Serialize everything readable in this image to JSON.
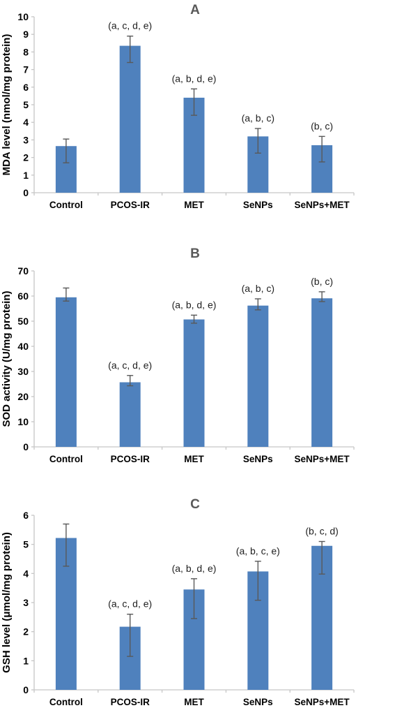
{
  "figure": {
    "background": "#FFFFFF",
    "panel_labels": [
      "A",
      "B",
      "C"
    ]
  },
  "style": {
    "bar_color": "#4F81BD",
    "error_bar_color": "#595959",
    "axis_line_color": "#C6C6C6",
    "panel_title_color": "#595959",
    "tick_label_color": "#000000",
    "annotation_color": "#1F1F1F"
  },
  "chart_data": [
    {
      "panel": "A",
      "type": "bar",
      "title": "A",
      "ylabel": "MDA level (nmol/mg protein)",
      "xlabel": "",
      "ylim": [
        0,
        10
      ],
      "ystep": 1,
      "grid": false,
      "categories": [
        "Control",
        "PCOS-IR",
        "MET",
        "SeNPs",
        "SeNPs+MET"
      ],
      "values": [
        2.65,
        8.35,
        5.4,
        3.2,
        2.7
      ],
      "error_upper": [
        3.05,
        8.9,
        5.9,
        3.65,
        3.2
      ],
      "error_lower": [
        1.7,
        7.4,
        4.4,
        2.25,
        1.75
      ],
      "annotations": [
        "",
        "(a, c, d, e)",
        "(a, b, d, e)",
        "(a, b, c)",
        "(b, c)"
      ]
    },
    {
      "panel": "B",
      "type": "bar",
      "title": "B",
      "ylabel": "SOD activity (U/mg protein)",
      "xlabel": "",
      "ylim": [
        0,
        70
      ],
      "ystep": 10,
      "grid": false,
      "categories": [
        "Control",
        "PCOS-IR",
        "MET",
        "SeNPs",
        "SeNPs+MET"
      ],
      "values": [
        59.5,
        25.7,
        50.7,
        56.2,
        59.1
      ],
      "error_upper": [
        63.2,
        28.4,
        52.4,
        58.9,
        61.7
      ],
      "error_lower": [
        58.0,
        24.3,
        49.2,
        54.5,
        57.8
      ],
      "annotations": [
        "",
        "(a, c, d, e)",
        "(a, b, d, e)",
        "(a, b, c)",
        "(b, c)"
      ]
    },
    {
      "panel": "C",
      "type": "bar",
      "title": "C",
      "ylabel": "GSH level (μmol/mg protein)",
      "xlabel": "",
      "ylim": [
        0,
        6
      ],
      "ystep": 1,
      "grid": false,
      "categories": [
        "Control",
        "PCOS-IR",
        "MET",
        "SeNPs",
        "SeNPs+MET"
      ],
      "values": [
        5.22,
        2.17,
        3.45,
        4.07,
        4.95
      ],
      "error_upper": [
        5.7,
        2.6,
        3.82,
        4.42,
        5.1
      ],
      "error_lower": [
        4.25,
        1.15,
        2.45,
        3.08,
        3.98
      ],
      "annotations": [
        "",
        "(a, c, d, e)",
        "(a, b, d, e)",
        "(a, b, c, e)",
        "(b, c, d)"
      ]
    }
  ]
}
